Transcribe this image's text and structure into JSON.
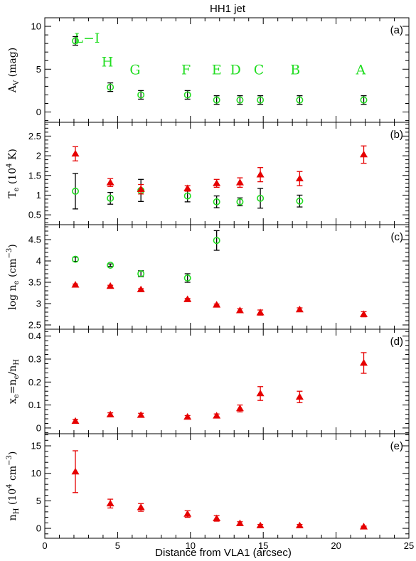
{
  "title": "HH1 jet",
  "xlabel": "Distance from VLA1 (arcsec)",
  "colors": {
    "green": "#22dd22",
    "red": "#e60000",
    "black": "#000000"
  },
  "x_axis": {
    "range": [
      0,
      25
    ],
    "major_ticks": [
      0,
      5,
      10,
      15,
      20,
      25
    ],
    "minor_step": 1
  },
  "chart_data": [
    {
      "type": "scatter",
      "panel": "(a)",
      "ylabel": "A_V (mag)",
      "ylim": [
        -1.2,
        11
      ],
      "major_ticks": [
        0,
        5,
        10
      ],
      "minor_step": 1,
      "knots": [
        {
          "label": "L−I",
          "x": 2.9,
          "y": 8.1
        },
        {
          "label": "H",
          "x": 4.3,
          "y": 5.3
        },
        {
          "label": "G",
          "x": 6.2,
          "y": 4.4
        },
        {
          "label": "F",
          "x": 9.7,
          "y": 4.4
        },
        {
          "label": "E",
          "x": 11.8,
          "y": 4.4
        },
        {
          "label": "D",
          "x": 13.1,
          "y": 4.4
        },
        {
          "label": "C",
          "x": 14.7,
          "y": 4.4
        },
        {
          "label": "B",
          "x": 17.2,
          "y": 4.4
        },
        {
          "label": "A",
          "x": 21.7,
          "y": 4.4
        }
      ],
      "series": [
        {
          "marker": "circle",
          "color": "#22dd22",
          "errcolor": "#000000",
          "x": [
            2.1,
            4.5,
            6.6,
            9.8,
            11.8,
            13.4,
            14.8,
            17.5,
            21.9
          ],
          "y": [
            8.3,
            2.9,
            2.0,
            2.0,
            1.4,
            1.4,
            1.4,
            1.4,
            1.4
          ],
          "err": [
            0.5,
            0.5,
            0.5,
            0.5,
            0.5,
            0.5,
            0.5,
            0.5,
            0.5
          ]
        }
      ]
    },
    {
      "type": "scatter",
      "panel": "(b)",
      "ylabel": "T_e (10^4 K)",
      "ylim": [
        0.25,
        2.85
      ],
      "major_ticks": [
        0.5,
        1,
        1.5,
        2,
        2.5
      ],
      "minor_step": 0.1,
      "series": [
        {
          "marker": "circle",
          "color": "#22dd22",
          "errcolor": "#000000",
          "x": [
            2.1,
            4.5,
            6.6,
            9.8,
            11.8,
            13.4,
            14.8,
            17.5
          ],
          "y": [
            1.1,
            0.92,
            1.12,
            0.98,
            0.83,
            0.83,
            0.92,
            0.85
          ],
          "err": [
            0.45,
            0.15,
            0.28,
            0.15,
            0.15,
            0.1,
            0.25,
            0.15
          ]
        },
        {
          "marker": "triangle",
          "color": "#e60000",
          "errcolor": "#e60000",
          "x": [
            2.1,
            4.5,
            6.6,
            9.8,
            11.8,
            13.4,
            14.8,
            17.5,
            21.9
          ],
          "y": [
            2.05,
            1.32,
            1.15,
            1.17,
            1.3,
            1.32,
            1.52,
            1.42,
            2.03
          ],
          "err": [
            0.18,
            0.1,
            0.12,
            0.07,
            0.1,
            0.12,
            0.18,
            0.18,
            0.22
          ]
        }
      ]
    },
    {
      "type": "scatter",
      "panel": "(c)",
      "ylabel": "log n_e (cm^-3)",
      "ylim": [
        2.4,
        4.85
      ],
      "major_ticks": [
        2.5,
        3,
        3.5,
        4,
        4.5
      ],
      "minor_step": 0.1,
      "series": [
        {
          "marker": "circle",
          "color": "#22dd22",
          "errcolor": "#000000",
          "x": [
            2.1,
            4.5,
            6.6,
            9.8,
            11.8
          ],
          "y": [
            4.04,
            3.9,
            3.7,
            3.6,
            4.48
          ],
          "err": [
            0.05,
            0.03,
            0.07,
            0.1,
            0.23
          ]
        },
        {
          "marker": "triangle",
          "color": "#e60000",
          "errcolor": "#e60000",
          "x": [
            2.1,
            4.5,
            6.6,
            9.8,
            11.8,
            13.4,
            14.8,
            17.5,
            21.9
          ],
          "y": [
            3.44,
            3.41,
            3.33,
            3.1,
            2.97,
            2.84,
            2.79,
            2.86,
            2.75
          ],
          "err": [
            0.02,
            0.02,
            0.02,
            0.02,
            0.02,
            0.04,
            0.06,
            0.04,
            0.06
          ]
        }
      ]
    },
    {
      "type": "scatter",
      "panel": "(d)",
      "ylabel": "x_e = n_e / n_H",
      "ylim": [
        -0.025,
        0.43
      ],
      "major_ticks": [
        0,
        0.1,
        0.2,
        0.3,
        0.4
      ],
      "minor_step": 0.02,
      "series": [
        {
          "marker": "triangle",
          "color": "#e60000",
          "errcolor": "#e60000",
          "x": [
            2.1,
            4.5,
            6.6,
            9.8,
            11.8,
            13.4,
            14.8,
            17.5,
            21.9
          ],
          "y": [
            0.03,
            0.058,
            0.056,
            0.048,
            0.053,
            0.085,
            0.15,
            0.135,
            0.283
          ],
          "err": [
            0.008,
            0.008,
            0.008,
            0.006,
            0.008,
            0.015,
            0.03,
            0.025,
            0.045
          ]
        }
      ]
    },
    {
      "type": "scatter",
      "panel": "(e)",
      "ylabel": "n_H (10^4 cm^-3)",
      "ylim": [
        -1.8,
        17.2
      ],
      "major_ticks": [
        0,
        5,
        10,
        15
      ],
      "minor_step": 1,
      "series": [
        {
          "marker": "triangle",
          "color": "#e60000",
          "errcolor": "#e60000",
          "x": [
            2.1,
            4.5,
            6.6,
            9.8,
            11.8,
            13.4,
            14.8,
            17.5,
            21.9
          ],
          "y": [
            10.3,
            4.5,
            3.8,
            2.6,
            1.8,
            0.9,
            0.5,
            0.5,
            0.3
          ],
          "err": [
            3.8,
            0.8,
            0.7,
            0.6,
            0.5,
            0.3,
            0.2,
            0.2,
            0.1
          ]
        }
      ]
    }
  ]
}
